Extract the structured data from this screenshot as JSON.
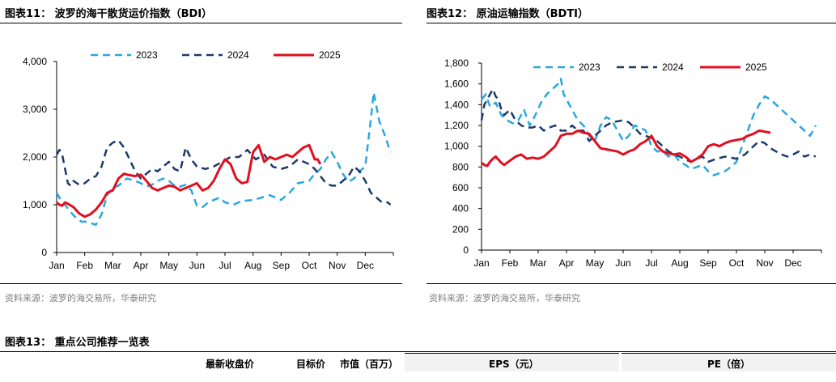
{
  "chart_data": [
    {
      "type": "line",
      "title": "图表11： 波罗的海干散货运价指数（BDI）",
      "source": "资料来源：波罗的海交易所，华泰研究",
      "ylim": [
        0,
        4000
      ],
      "yticks": [
        0,
        1000,
        2000,
        3000,
        4000
      ],
      "ytick_labels": [
        "0",
        "1,000",
        "2,000",
        "3,000",
        "4,000"
      ],
      "months": [
        "Jan",
        "Feb",
        "Mar",
        "Apr",
        "May",
        "Jun",
        "Jul",
        "Aug",
        "Sep",
        "Oct",
        "Nov",
        "Dec"
      ],
      "series": [
        {
          "name": "2023",
          "color": "#29a8e0",
          "dash": "9,6",
          "width": 2.5,
          "x": [
            0,
            0.1,
            0.2,
            0.3,
            0.4,
            0.5,
            0.6,
            0.7,
            0.8,
            0.9,
            1.0,
            1.2,
            1.4,
            1.6,
            1.8,
            2.0,
            2.2,
            2.5,
            2.8,
            3.0,
            3.2,
            3.4,
            3.6,
            3.8,
            4.0,
            4.2,
            4.4,
            4.6,
            4.8,
            5.0,
            5.2,
            5.4,
            5.6,
            5.8,
            6.0,
            6.3,
            6.6,
            7.0,
            7.3,
            7.6,
            8.0,
            8.3,
            8.6,
            9.0,
            9.2,
            9.4,
            9.6,
            9.8,
            10.0,
            10.2,
            10.4,
            10.6,
            10.8,
            11.0,
            11.1,
            11.2,
            11.3,
            11.5,
            11.7,
            11.9
          ],
          "y": [
            1250,
            1150,
            1050,
            1000,
            920,
            850,
            780,
            720,
            680,
            640,
            650,
            620,
            580,
            800,
            1200,
            1350,
            1400,
            1550,
            1500,
            1450,
            1380,
            1420,
            1500,
            1550,
            1500,
            1400,
            1380,
            1420,
            1300,
            980,
            950,
            1050,
            1100,
            1150,
            1050,
            1000,
            1080,
            1100,
            1150,
            1200,
            1100,
            1250,
            1450,
            1500,
            1650,
            1750,
            1950,
            2100,
            1900,
            1650,
            1480,
            1550,
            1700,
            1800,
            2300,
            2800,
            3350,
            2750,
            2450,
            2100
          ]
        },
        {
          "name": "2024",
          "color": "#1b3a6b",
          "dash": "9,6",
          "width": 2.5,
          "x": [
            0,
            0.1,
            0.2,
            0.3,
            0.4,
            0.5,
            0.6,
            0.8,
            1.0,
            1.2,
            1.4,
            1.6,
            1.8,
            2.0,
            2.2,
            2.4,
            2.6,
            2.8,
            3.0,
            3.2,
            3.4,
            3.6,
            3.8,
            4.0,
            4.2,
            4.4,
            4.6,
            4.8,
            5.0,
            5.3,
            5.6,
            5.9,
            6.2,
            6.5,
            6.8,
            7.1,
            7.4,
            7.7,
            8.0,
            8.3,
            8.6,
            9.0,
            9.2,
            9.4,
            9.6,
            9.8,
            10.0,
            10.2,
            10.4,
            10.6,
            10.8,
            11.0,
            11.2,
            11.4,
            11.6,
            11.8,
            11.9
          ],
          "y": [
            2050,
            2150,
            2050,
            1750,
            1450,
            1400,
            1500,
            1420,
            1450,
            1550,
            1600,
            1800,
            2200,
            2300,
            2350,
            2200,
            1950,
            1700,
            1550,
            1650,
            1750,
            1700,
            1800,
            1900,
            1750,
            1700,
            2200,
            1950,
            1800,
            1750,
            1800,
            1900,
            2000,
            2000,
            2150,
            1950,
            2050,
            1800,
            1750,
            1800,
            1950,
            1850,
            1750,
            1600,
            1450,
            1400,
            1400,
            1500,
            1600,
            1800,
            1700,
            1500,
            1250,
            1150,
            1050,
            1050,
            1000
          ]
        },
        {
          "name": "2025",
          "color": "#e0101f",
          "dash": "",
          "width": 3,
          "x": [
            0,
            0.1,
            0.2,
            0.3,
            0.4,
            0.6,
            0.8,
            1.0,
            1.2,
            1.4,
            1.6,
            1.8,
            2.0,
            2.2,
            2.4,
            2.6,
            2.8,
            3.0,
            3.2,
            3.4,
            3.6,
            3.8,
            4.0,
            4.2,
            4.4,
            4.6,
            4.8,
            5.0,
            5.2,
            5.4,
            5.6,
            5.8,
            6.0,
            6.2,
            6.4,
            6.6,
            6.8,
            7.0,
            7.2,
            7.4,
            7.6,
            7.8,
            8.0,
            8.2,
            8.4,
            8.6,
            8.8,
            9.0,
            9.1,
            9.2,
            9.3,
            9.4
          ],
          "y": [
            1050,
            1000,
            980,
            1050,
            1020,
            950,
            820,
            750,
            800,
            900,
            1050,
            1250,
            1300,
            1550,
            1650,
            1620,
            1600,
            1630,
            1500,
            1350,
            1300,
            1350,
            1400,
            1380,
            1300,
            1350,
            1400,
            1450,
            1300,
            1350,
            1500,
            1750,
            1950,
            1850,
            1550,
            1450,
            1480,
            2100,
            2250,
            1900,
            2000,
            1950,
            2000,
            2050,
            2000,
            2100,
            2200,
            2250,
            2100,
            1950,
            1950,
            1850
          ]
        }
      ]
    },
    {
      "type": "line",
      "title": "图表12： 原油运输指数（BDTI）",
      "source": "资料来源：波罗的海交易所，华泰研究",
      "ylim": [
        0,
        1800
      ],
      "yticks": [
        0,
        200,
        400,
        600,
        800,
        1000,
        1200,
        1400,
        1600,
        1800
      ],
      "ytick_labels": [
        "0",
        "200",
        "400",
        "600",
        "800",
        "1,000",
        "1,200",
        "1,400",
        "1,600",
        "1,800"
      ],
      "months": [
        "Jan",
        "Feb",
        "Mar",
        "Apr",
        "May",
        "Jun",
        "Jul",
        "Aug",
        "Sep",
        "Oct",
        "Nov",
        "Dec"
      ],
      "series": [
        {
          "name": "2023",
          "color": "#29a8e0",
          "dash": "9,6",
          "width": 2.5,
          "x": [
            0,
            0.15,
            0.3,
            0.5,
            0.7,
            0.9,
            1.1,
            1.3,
            1.5,
            1.7,
            1.9,
            2.1,
            2.3,
            2.5,
            2.7,
            2.8,
            2.9,
            3.0,
            3.2,
            3.4,
            3.6,
            3.8,
            4.0,
            4.2,
            4.4,
            4.6,
            4.8,
            5.0,
            5.2,
            5.4,
            5.6,
            5.8,
            6.0,
            6.2,
            6.4,
            6.6,
            6.8,
            7.0,
            7.2,
            7.4,
            7.6,
            7.8,
            8.0,
            8.2,
            8.4,
            8.6,
            8.8,
            9.0,
            9.2,
            9.4,
            9.6,
            9.8,
            10.0,
            10.2,
            10.4,
            10.6,
            10.8,
            11.0,
            11.2,
            11.4,
            11.6,
            11.7,
            11.8
          ],
          "y": [
            1450,
            1500,
            1380,
            1420,
            1300,
            1250,
            1220,
            1250,
            1350,
            1200,
            1300,
            1420,
            1500,
            1550,
            1600,
            1650,
            1500,
            1450,
            1350,
            1250,
            1200,
            1100,
            1050,
            1200,
            1280,
            1250,
            1150,
            1050,
            1100,
            1200,
            1180,
            1150,
            1000,
            950,
            950,
            900,
            920,
            850,
            820,
            780,
            800,
            820,
            760,
            720,
            740,
            760,
            800,
            850,
            1000,
            1150,
            1300,
            1400,
            1480,
            1450,
            1400,
            1350,
            1300,
            1250,
            1200,
            1150,
            1100,
            1150,
            1200
          ]
        },
        {
          "name": "2024",
          "color": "#1b3a6b",
          "dash": "9,6",
          "width": 2.5,
          "x": [
            0,
            0.1,
            0.2,
            0.3,
            0.4,
            0.5,
            0.6,
            0.7,
            0.8,
            1.0,
            1.2,
            1.4,
            1.6,
            1.8,
            2.0,
            2.2,
            2.4,
            2.6,
            2.8,
            3.0,
            3.2,
            3.4,
            3.6,
            3.8,
            4.0,
            4.2,
            4.4,
            4.6,
            4.8,
            5.0,
            5.2,
            5.4,
            5.6,
            5.8,
            6.0,
            6.2,
            6.4,
            6.6,
            6.8,
            7.0,
            7.2,
            7.4,
            7.6,
            7.8,
            8.0,
            8.3,
            8.6,
            9.0,
            9.3,
            9.6,
            9.8,
            10.0,
            10.2,
            10.4,
            10.6,
            10.8,
            11.0,
            11.2,
            11.4,
            11.6,
            11.8
          ],
          "y": [
            1250,
            1400,
            1450,
            1500,
            1550,
            1480,
            1450,
            1350,
            1300,
            1350,
            1250,
            1200,
            1180,
            1180,
            1200,
            1150,
            1180,
            1200,
            1150,
            1150,
            1200,
            1150,
            1150,
            1050,
            1100,
            1150,
            1200,
            1230,
            1240,
            1250,
            1230,
            1180,
            1120,
            1100,
            1080,
            1050,
            1000,
            950,
            920,
            900,
            870,
            850,
            880,
            900,
            850,
            880,
            900,
            880,
            920,
            1000,
            1050,
            1030,
            980,
            950,
            920,
            900,
            920,
            950,
            900,
            920,
            900
          ]
        },
        {
          "name": "2025",
          "color": "#e0101f",
          "dash": "",
          "width": 3,
          "x": [
            0,
            0.1,
            0.2,
            0.3,
            0.4,
            0.5,
            0.6,
            0.7,
            0.8,
            0.9,
            1.0,
            1.2,
            1.4,
            1.6,
            1.8,
            2.0,
            2.2,
            2.4,
            2.6,
            2.8,
            3.0,
            3.2,
            3.4,
            3.6,
            3.8,
            4.0,
            4.2,
            4.4,
            4.6,
            4.8,
            5.0,
            5.2,
            5.4,
            5.6,
            5.8,
            6.0,
            6.2,
            6.4,
            6.6,
            6.8,
            7.0,
            7.2,
            7.4,
            7.6,
            7.8,
            8.0,
            8.2,
            8.4,
            8.6,
            8.8,
            9.0,
            9.2,
            9.4,
            9.6,
            9.8,
            10.0,
            10.2
          ],
          "y": [
            840,
            820,
            810,
            850,
            880,
            900,
            870,
            840,
            820,
            840,
            860,
            900,
            920,
            880,
            890,
            880,
            900,
            950,
            1000,
            1100,
            1120,
            1120,
            1150,
            1130,
            1120,
            1050,
            980,
            970,
            960,
            950,
            920,
            950,
            970,
            1020,
            1050,
            1100,
            1000,
            950,
            930,
            920,
            930,
            900,
            850,
            880,
            920,
            1000,
            1020,
            1000,
            1030,
            1050,
            1060,
            1070,
            1100,
            1120,
            1150,
            1140,
            1130
          ]
        }
      ]
    }
  ],
  "table": {
    "title": "图表13： 重点公司推荐一览表",
    "headers": [
      "最新收盘价",
      "目标价",
      "市值（百万）",
      "EPS（元）",
      "PE（倍）"
    ]
  }
}
